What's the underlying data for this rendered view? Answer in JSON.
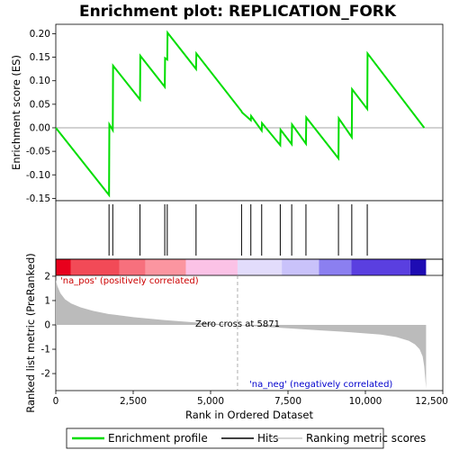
{
  "chart_data": {
    "type": "line",
    "title": "Enrichment plot: REPLICATION_FORK",
    "es_panel": {
      "ylabel": "Enrichment score (ES)",
      "ylim": [
        -0.155,
        0.22
      ],
      "yticks": [
        -0.15,
        -0.1,
        -0.05,
        0.0,
        0.05,
        0.1,
        0.15,
        0.2
      ],
      "ytick_labels": [
        "-0.15",
        "-0.10",
        "-0.05",
        "0.00",
        "0.05",
        "0.10",
        "0.15",
        "0.20"
      ],
      "series": [
        {
          "name": "Enrichment profile",
          "color": "#00dd00",
          "x": [
            0,
            1720,
            1730,
            1840,
            1850,
            2720,
            2730,
            3520,
            3530,
            3600,
            3610,
            4530,
            4540,
            6000,
            6010,
            6300,
            6310,
            6650,
            6660,
            7250,
            7260,
            7620,
            7630,
            8080,
            8090,
            9130,
            9140,
            9560,
            9570,
            10060,
            10070,
            11900
          ],
          "y": [
            0.0,
            -0.143,
            0.007,
            -0.005,
            0.132,
            0.06,
            0.153,
            0.087,
            0.148,
            0.145,
            0.202,
            0.125,
            0.158,
            0.035,
            0.033,
            0.016,
            0.025,
            -0.006,
            0.01,
            -0.037,
            -0.004,
            -0.035,
            0.007,
            -0.034,
            0.022,
            -0.065,
            0.02,
            -0.02,
            0.082,
            0.04,
            0.158,
            0.0
          ]
        }
      ]
    },
    "hits": {
      "name": "Hits",
      "positions": [
        1720,
        1840,
        2720,
        3520,
        3600,
        4530,
        6000,
        6300,
        6650,
        7250,
        7620,
        8080,
        9130,
        9560,
        10060
      ]
    },
    "rank_panel": {
      "ylabel": "Ranked list metric (PreRanked)",
      "ylim": [
        -2.7,
        2.7
      ],
      "yticks": [
        -2,
        -1,
        0,
        1,
        2
      ],
      "ytick_labels": [
        "-2",
        "-1",
        "0",
        "1",
        "2"
      ],
      "series_name": "Ranking metric scores",
      "curve": {
        "x": [
          0,
          50,
          150,
          300,
          500,
          800,
          1200,
          1700,
          2500,
          3500,
          4500,
          5500,
          5871,
          6500,
          7500,
          8500,
          9500,
          10500,
          11000,
          11400,
          11600,
          11750,
          11850,
          11900,
          11960
        ],
        "y": [
          1.85,
          1.6,
          1.3,
          1.05,
          0.88,
          0.72,
          0.58,
          0.45,
          0.32,
          0.2,
          0.1,
          0.02,
          0.0,
          -0.06,
          -0.14,
          -0.22,
          -0.3,
          -0.4,
          -0.5,
          -0.65,
          -0.8,
          -1.0,
          -1.3,
          -1.7,
          -2.6
        ]
      },
      "zero_cross_label": "Zero cross at 5871",
      "zero_cross_x": 5871,
      "pos_label": "'na_pos' (positively correlated)",
      "neg_label": "'na_neg' (negatively correlated)"
    },
    "x_axis": {
      "xlabel": "Rank in Ordered Dataset",
      "xlim": [
        0,
        12500
      ],
      "xticks": [
        0,
        2500,
        5000,
        7500,
        10000,
        12500
      ],
      "xtick_labels": [
        "0",
        "2,500",
        "5,000",
        "7,500",
        "10,000",
        "12,500"
      ]
    },
    "colorbar": {
      "max_rank": 11960,
      "segments": [
        {
          "start": 0,
          "end": 480,
          "color": "#e8001c"
        },
        {
          "start": 480,
          "end": 2050,
          "color": "#f24a57"
        },
        {
          "start": 2050,
          "end": 2900,
          "color": "#f7707d"
        },
        {
          "start": 2900,
          "end": 4200,
          "color": "#fb95a0"
        },
        {
          "start": 4200,
          "end": 5871,
          "color": "#fbc2e6"
        },
        {
          "start": 5871,
          "end": 7300,
          "color": "#e2dcfb"
        },
        {
          "start": 7300,
          "end": 8500,
          "color": "#c9c2fa"
        },
        {
          "start": 8500,
          "end": 9550,
          "color": "#8b7ff0"
        },
        {
          "start": 9550,
          "end": 11450,
          "color": "#5a3fe0"
        },
        {
          "start": 11450,
          "end": 11960,
          "color": "#1e0cb3"
        }
      ]
    },
    "legend": {
      "placement": "bottom",
      "items": [
        {
          "label": "Enrichment profile",
          "color": "#00dd00"
        },
        {
          "label": "Hits",
          "color": "#000000"
        },
        {
          "label": "Ranking metric scores",
          "color": "#bbbbbb"
        }
      ]
    }
  }
}
